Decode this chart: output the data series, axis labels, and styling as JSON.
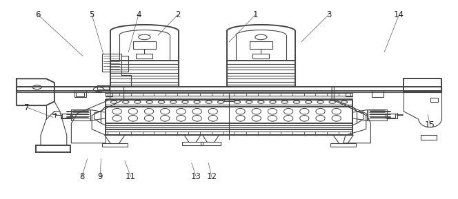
{
  "line_color": "#444444",
  "bg_color": "#ffffff",
  "lw": 0.8,
  "lw2": 1.4,
  "fig_width": 6.64,
  "fig_height": 2.89,
  "labels": {
    "1": [
      0.558,
      0.072,
      0.5,
      0.21
    ],
    "2": [
      0.388,
      0.072,
      0.345,
      0.175
    ],
    "3": [
      0.718,
      0.072,
      0.658,
      0.21
    ],
    "4": [
      0.302,
      0.072,
      0.28,
      0.26
    ],
    "5": [
      0.2,
      0.072,
      0.225,
      0.27
    ],
    "6": [
      0.082,
      0.072,
      0.18,
      0.28
    ],
    "7": [
      0.058,
      0.54,
      0.115,
      0.59
    ],
    "8": [
      0.178,
      0.89,
      0.19,
      0.8
    ],
    "9": [
      0.218,
      0.89,
      0.22,
      0.8
    ],
    "11": [
      0.285,
      0.89,
      0.272,
      0.81
    ],
    "12": [
      0.462,
      0.89,
      0.455,
      0.82
    ],
    "13": [
      0.428,
      0.89,
      0.418,
      0.82
    ],
    "14": [
      0.872,
      0.072,
      0.84,
      0.26
    ],
    "15": [
      0.94,
      0.63,
      0.935,
      0.575
    ]
  }
}
